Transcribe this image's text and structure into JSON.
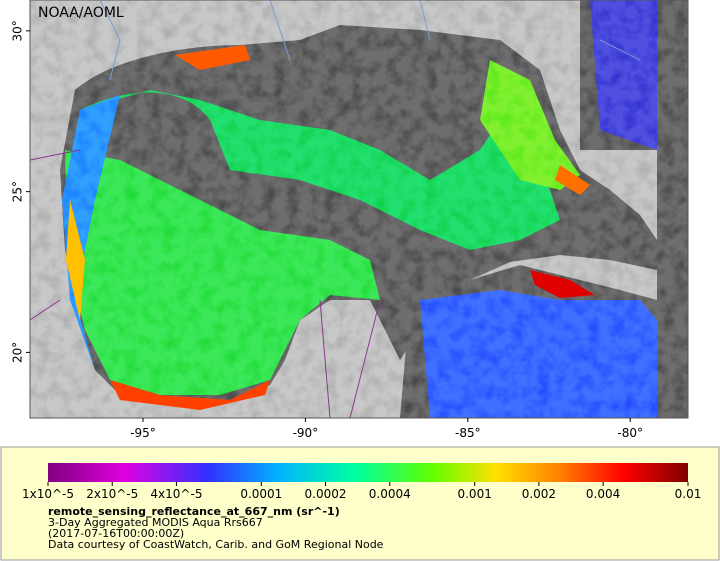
{
  "map": {
    "credit": "NOAA/AOML",
    "lon_range": [
      -98.48,
      -78.22
    ],
    "lat_range": [
      17.96,
      30.96
    ],
    "lat_ticks": [
      {
        "value": 30,
        "label": "30°"
      },
      {
        "value": 25,
        "label": "25°"
      },
      {
        "value": 20,
        "label": "20°"
      }
    ],
    "lon_ticks": [
      {
        "value": -95,
        "label": "-95°"
      },
      {
        "value": -90,
        "label": "-90°"
      },
      {
        "value": -85,
        "label": "-85°"
      },
      {
        "value": -80,
        "label": "-80°"
      }
    ]
  },
  "colorbar": {
    "log_scale": true,
    "range": [
      1e-05,
      0.01
    ],
    "ticks": [
      {
        "value": 1e-05,
        "label": "1x10^-5"
      },
      {
        "value": 2e-05,
        "label": "2x10^-5"
      },
      {
        "value": 4e-05,
        "label": "4x10^-5"
      },
      0.0001,
      0.0002,
      0.0004,
      0.001,
      0.002,
      0.004,
      0.01
    ],
    "title": "remote_sensing_reflectance_at_667_nm (sr^-1)",
    "lines": [
      "3-Day Aggregated MODIS Aqua Rrs667",
      "(2017-07-16T00:00:00Z)",
      "Data courtesy of CoastWatch, Carib. and GoM Regional Node"
    ]
  }
}
